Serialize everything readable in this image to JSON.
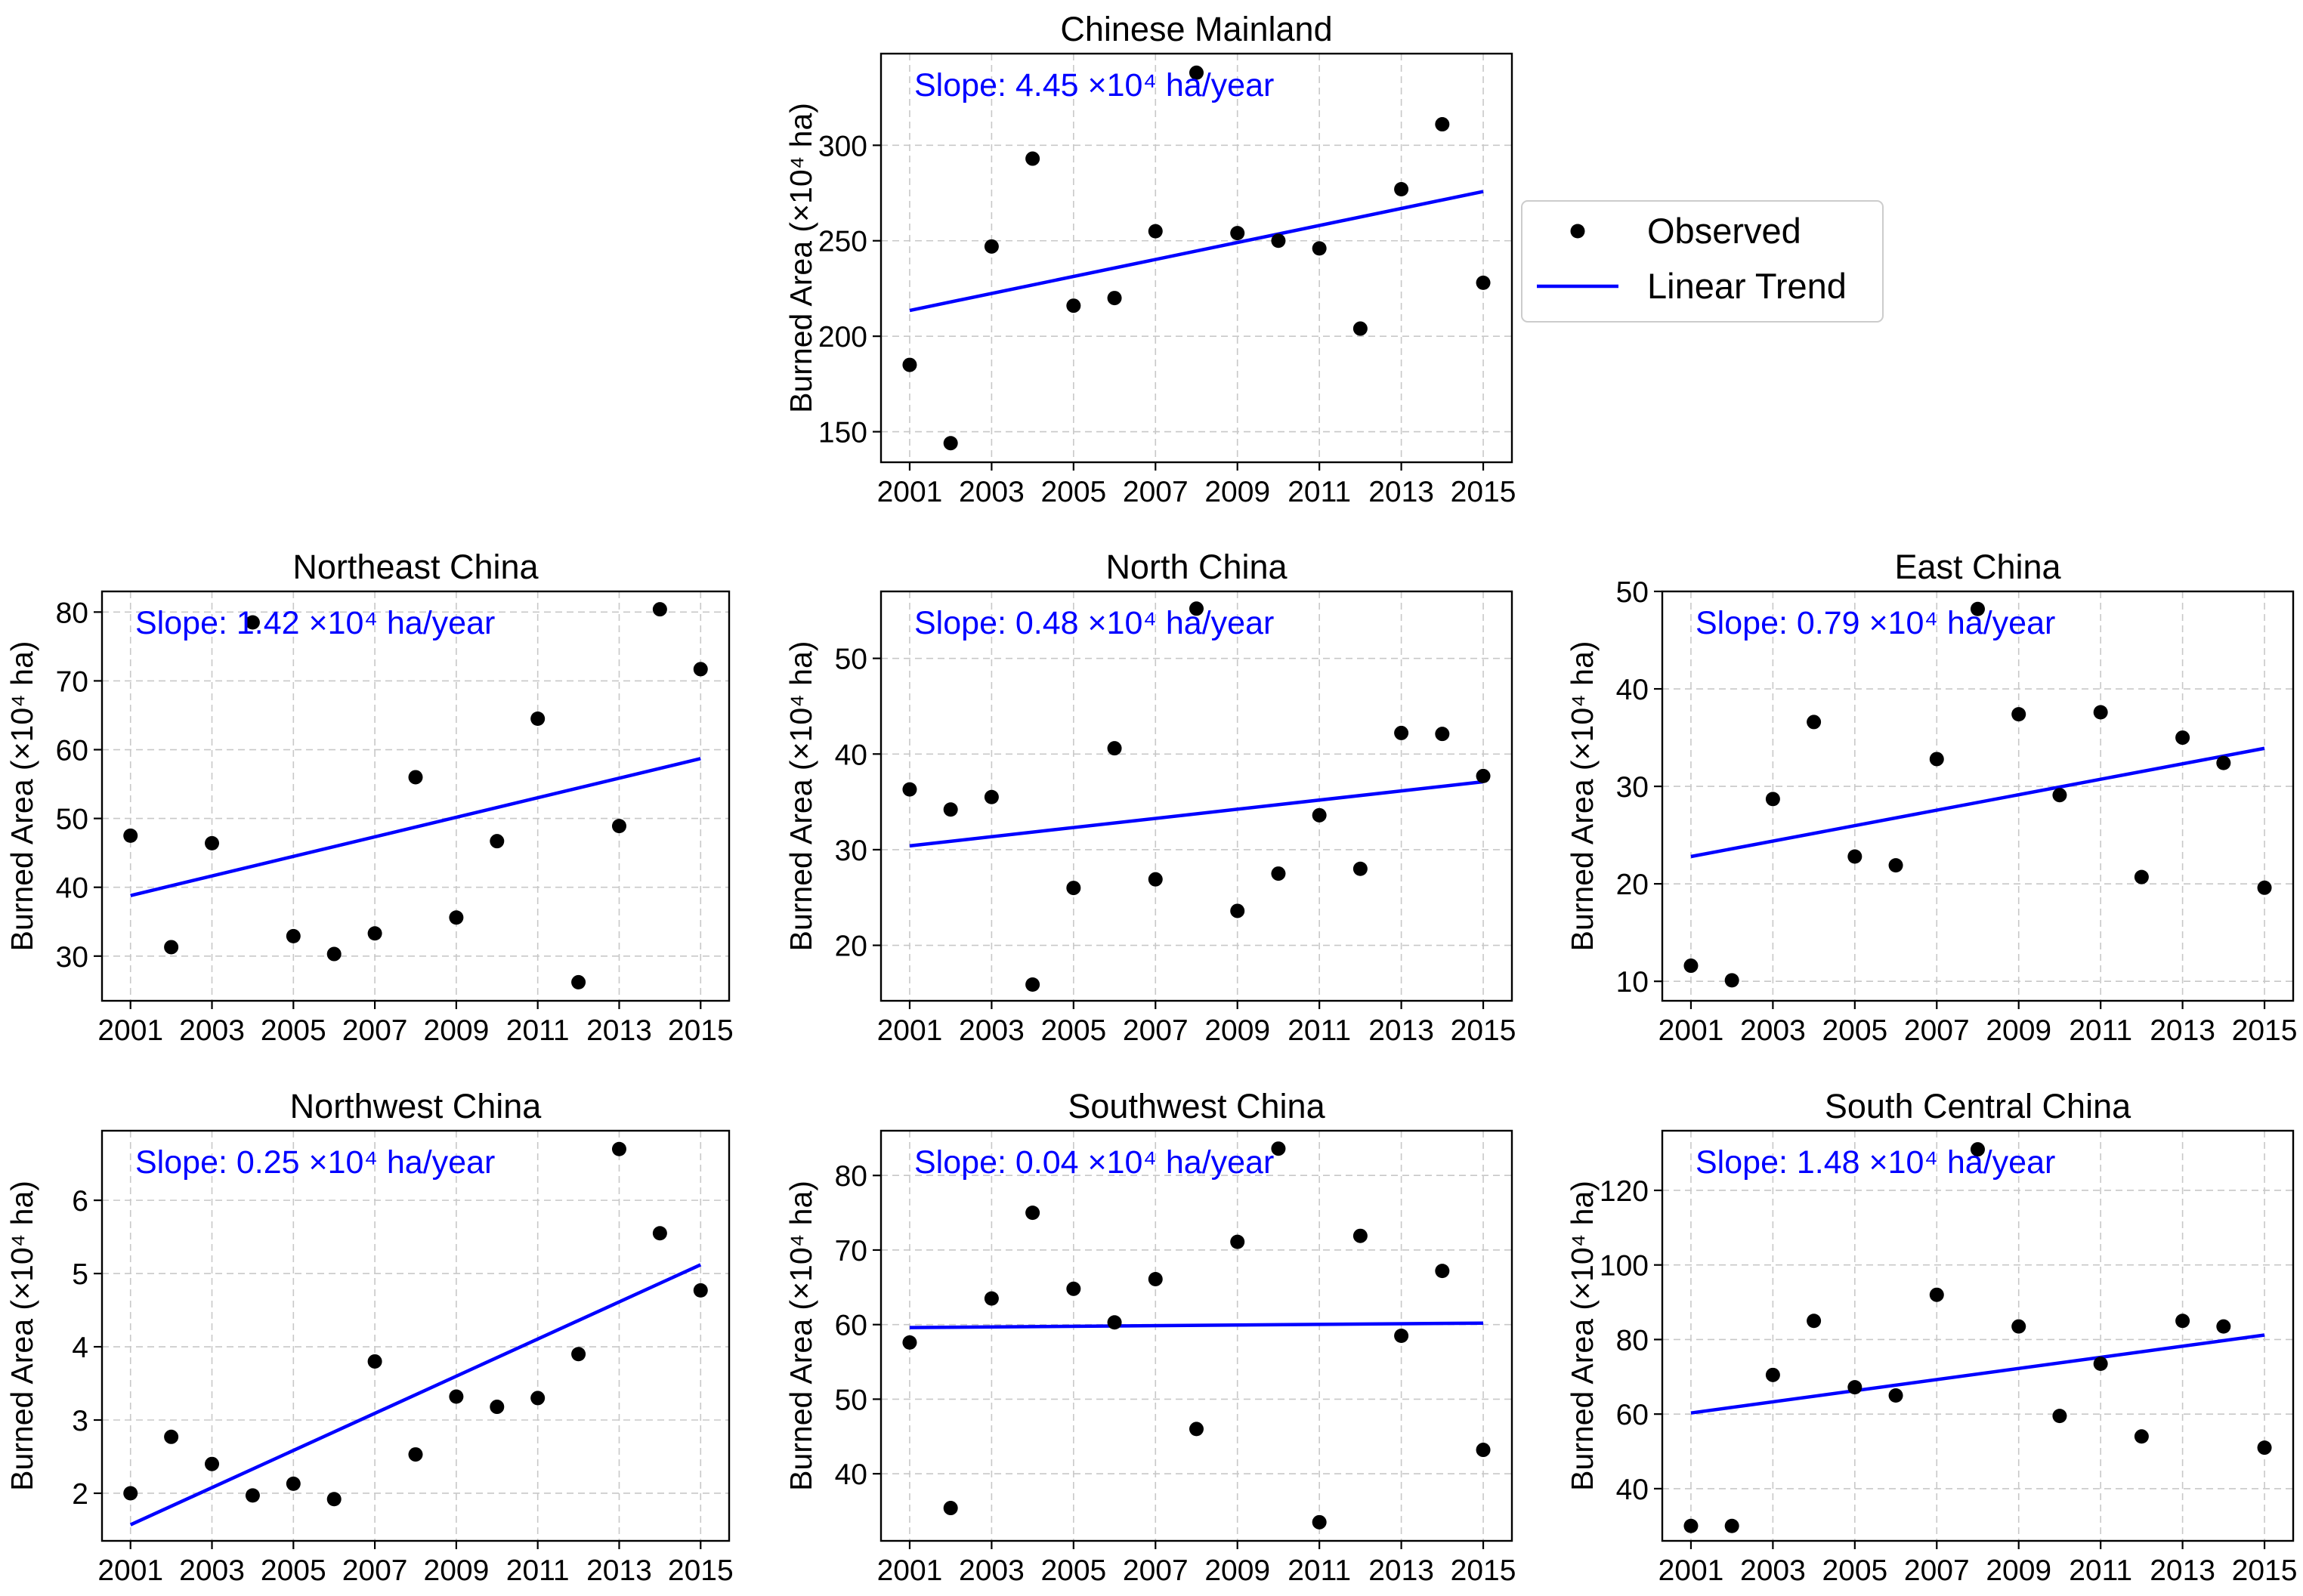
{
  "colors": {
    "trend": "#0000ff",
    "observed": "#000000",
    "grid": "#c8c8c8",
    "legend_border": "#cccccc"
  },
  "legend": {
    "observed_label": "Observed",
    "trend_label": "Linear Trend"
  },
  "chart_data": [
    {
      "type": "scatter",
      "title": "Chinese Mainland",
      "ylabel": "Burned Area (×10⁴ ha)",
      "xlabel": "",
      "slope_label": "Slope: 4.45 ×10⁴ ha/year",
      "x": [
        2001,
        2002,
        2003,
        2004,
        2005,
        2006,
        2007,
        2008,
        2009,
        2010,
        2011,
        2012,
        2013,
        2014,
        2015
      ],
      "values": [
        185,
        144,
        247,
        293,
        216,
        220,
        255,
        338,
        254,
        250,
        246,
        204,
        277,
        311,
        228
      ],
      "trend": {
        "start": [
          2001,
          213.5
        ],
        "end": [
          2015,
          275.8
        ]
      },
      "xticks": [
        "2001",
        "2003",
        "2005",
        "2007",
        "2009",
        "2011",
        "2013",
        "2015"
      ],
      "yticks": [
        "150",
        "200",
        "250",
        "300"
      ],
      "xlim": [
        2000.3,
        2015.7
      ],
      "ylim": [
        134,
        348
      ],
      "grid": true
    },
    {
      "type": "scatter",
      "title": "Northeast China",
      "ylabel": "Burned Area (×10⁴ ha)",
      "xlabel": "",
      "slope_label": "Slope: 1.42 ×10⁴ ha/year",
      "x": [
        2001,
        2002,
        2003,
        2004,
        2005,
        2006,
        2007,
        2008,
        2009,
        2010,
        2011,
        2012,
        2013,
        2014,
        2015
      ],
      "values": [
        47.5,
        31.3,
        46.4,
        78.5,
        32.9,
        30.3,
        33.3,
        56.0,
        35.6,
        46.7,
        64.5,
        26.2,
        48.9,
        80.4,
        71.7
      ],
      "trend": {
        "start": [
          2001,
          38.8
        ],
        "end": [
          2015,
          58.7
        ]
      },
      "xticks": [
        "2001",
        "2003",
        "2005",
        "2007",
        "2009",
        "2011",
        "2013",
        "2015"
      ],
      "yticks": [
        "30",
        "40",
        "50",
        "60",
        "70",
        "80"
      ],
      "xlim": [
        2000.3,
        2015.7
      ],
      "ylim": [
        23.5,
        83.0
      ],
      "grid": true
    },
    {
      "type": "scatter",
      "title": "North China",
      "ylabel": "Burned Area (×10⁴ ha)",
      "xlabel": "",
      "slope_label": "Slope: 0.48 ×10⁴ ha/year",
      "x": [
        2001,
        2002,
        2003,
        2004,
        2005,
        2006,
        2007,
        2008,
        2009,
        2010,
        2011,
        2012,
        2013,
        2014,
        2015
      ],
      "values": [
        36.3,
        34.2,
        35.5,
        15.9,
        26.0,
        40.6,
        26.9,
        55.2,
        23.6,
        27.5,
        33.6,
        28.0,
        42.2,
        42.1,
        37.7
      ],
      "trend": {
        "start": [
          2001,
          30.4
        ],
        "end": [
          2015,
          37.1
        ]
      },
      "xticks": [
        "2001",
        "2003",
        "2005",
        "2007",
        "2009",
        "2011",
        "2013",
        "2015"
      ],
      "yticks": [
        "20",
        "30",
        "40",
        "50"
      ],
      "xlim": [
        2000.3,
        2015.7
      ],
      "ylim": [
        14.2,
        57.0
      ],
      "grid": true
    },
    {
      "type": "scatter",
      "title": "East China",
      "ylabel": "Burned Area (×10⁴ ha)",
      "xlabel": "",
      "slope_label": "Slope: 0.79 ×10⁴ ha/year",
      "x": [
        2001,
        2002,
        2003,
        2004,
        2005,
        2006,
        2007,
        2008,
        2009,
        2010,
        2011,
        2012,
        2013,
        2014,
        2015
      ],
      "values": [
        11.6,
        10.1,
        28.7,
        36.6,
        22.8,
        21.9,
        32.8,
        48.2,
        37.4,
        29.1,
        37.6,
        20.7,
        35.0,
        32.4,
        19.6
      ],
      "trend": {
        "start": [
          2001,
          22.8
        ],
        "end": [
          2015,
          33.9
        ]
      },
      "xticks": [
        "2001",
        "2003",
        "2005",
        "2007",
        "2009",
        "2011",
        "2013",
        "2015"
      ],
      "yticks": [
        "10",
        "20",
        "30",
        "40",
        "50"
      ],
      "xlim": [
        2000.3,
        2015.7
      ],
      "ylim": [
        8.0,
        50.0
      ],
      "grid": true
    },
    {
      "type": "scatter",
      "title": "Northwest China",
      "ylabel": "Burned Area (×10⁴ ha)",
      "xlabel": "",
      "slope_label": "Slope: 0.25 ×10⁴ ha/year",
      "x": [
        2001,
        2002,
        2003,
        2004,
        2005,
        2006,
        2007,
        2008,
        2009,
        2010,
        2011,
        2012,
        2013,
        2014,
        2015
      ],
      "values": [
        2.0,
        2.77,
        2.4,
        1.97,
        2.13,
        1.92,
        3.8,
        2.53,
        3.32,
        3.18,
        3.3,
        3.9,
        6.7,
        5.55,
        4.77
      ],
      "trend": {
        "start": [
          2001,
          1.57
        ],
        "end": [
          2015,
          5.12
        ]
      },
      "xticks": [
        "2001",
        "2003",
        "2005",
        "2007",
        "2009",
        "2011",
        "2013",
        "2015"
      ],
      "yticks": [
        "2",
        "3",
        "4",
        "5",
        "6"
      ],
      "xlim": [
        2000.3,
        2015.7
      ],
      "ylim": [
        1.35,
        6.95
      ],
      "grid": true
    },
    {
      "type": "scatter",
      "title": "Southwest China",
      "ylabel": "Burned Area (×10⁴ ha)",
      "xlabel": "",
      "slope_label": "Slope: 0.04 ×10⁴ ha/year",
      "x": [
        2001,
        2002,
        2003,
        2004,
        2005,
        2006,
        2007,
        2008,
        2009,
        2010,
        2011,
        2012,
        2013,
        2014,
        2015
      ],
      "values": [
        57.6,
        35.4,
        63.5,
        75.0,
        64.8,
        60.3,
        66.1,
        46.0,
        71.1,
        83.6,
        33.5,
        71.9,
        58.5,
        67.2,
        43.2
      ],
      "trend": {
        "start": [
          2001,
          59.6
        ],
        "end": [
          2015,
          60.2
        ]
      },
      "xticks": [
        "2001",
        "2003",
        "2005",
        "2007",
        "2009",
        "2011",
        "2013",
        "2015"
      ],
      "yticks": [
        "40",
        "50",
        "60",
        "70",
        "80"
      ],
      "xlim": [
        2000.3,
        2015.7
      ],
      "ylim": [
        31.0,
        86.0
      ],
      "grid": true
    },
    {
      "type": "scatter",
      "title": "South Central China",
      "ylabel": "Burned Area (×10⁴ ha)",
      "xlabel": "",
      "slope_label": "Slope: 1.48 ×10⁴ ha/year",
      "x": [
        2001,
        2002,
        2003,
        2004,
        2005,
        2006,
        2007,
        2008,
        2009,
        2010,
        2011,
        2012,
        2013,
        2014,
        2015
      ],
      "values": [
        30.0,
        30.0,
        70.5,
        85.0,
        67.2,
        65.0,
        92.0,
        131.0,
        83.5,
        59.5,
        73.5,
        54.0,
        85.0,
        83.5,
        51.0
      ],
      "trend": {
        "start": [
          2001,
          60.3
        ],
        "end": [
          2015,
          81.2
        ]
      },
      "xticks": [
        "2001",
        "2003",
        "2005",
        "2007",
        "2009",
        "2011",
        "2013",
        "2015"
      ],
      "yticks": [
        "40",
        "60",
        "80",
        "100",
        "120"
      ],
      "xlim": [
        2000.3,
        2015.7
      ],
      "ylim": [
        26.0,
        136.0
      ],
      "grid": true
    }
  ]
}
